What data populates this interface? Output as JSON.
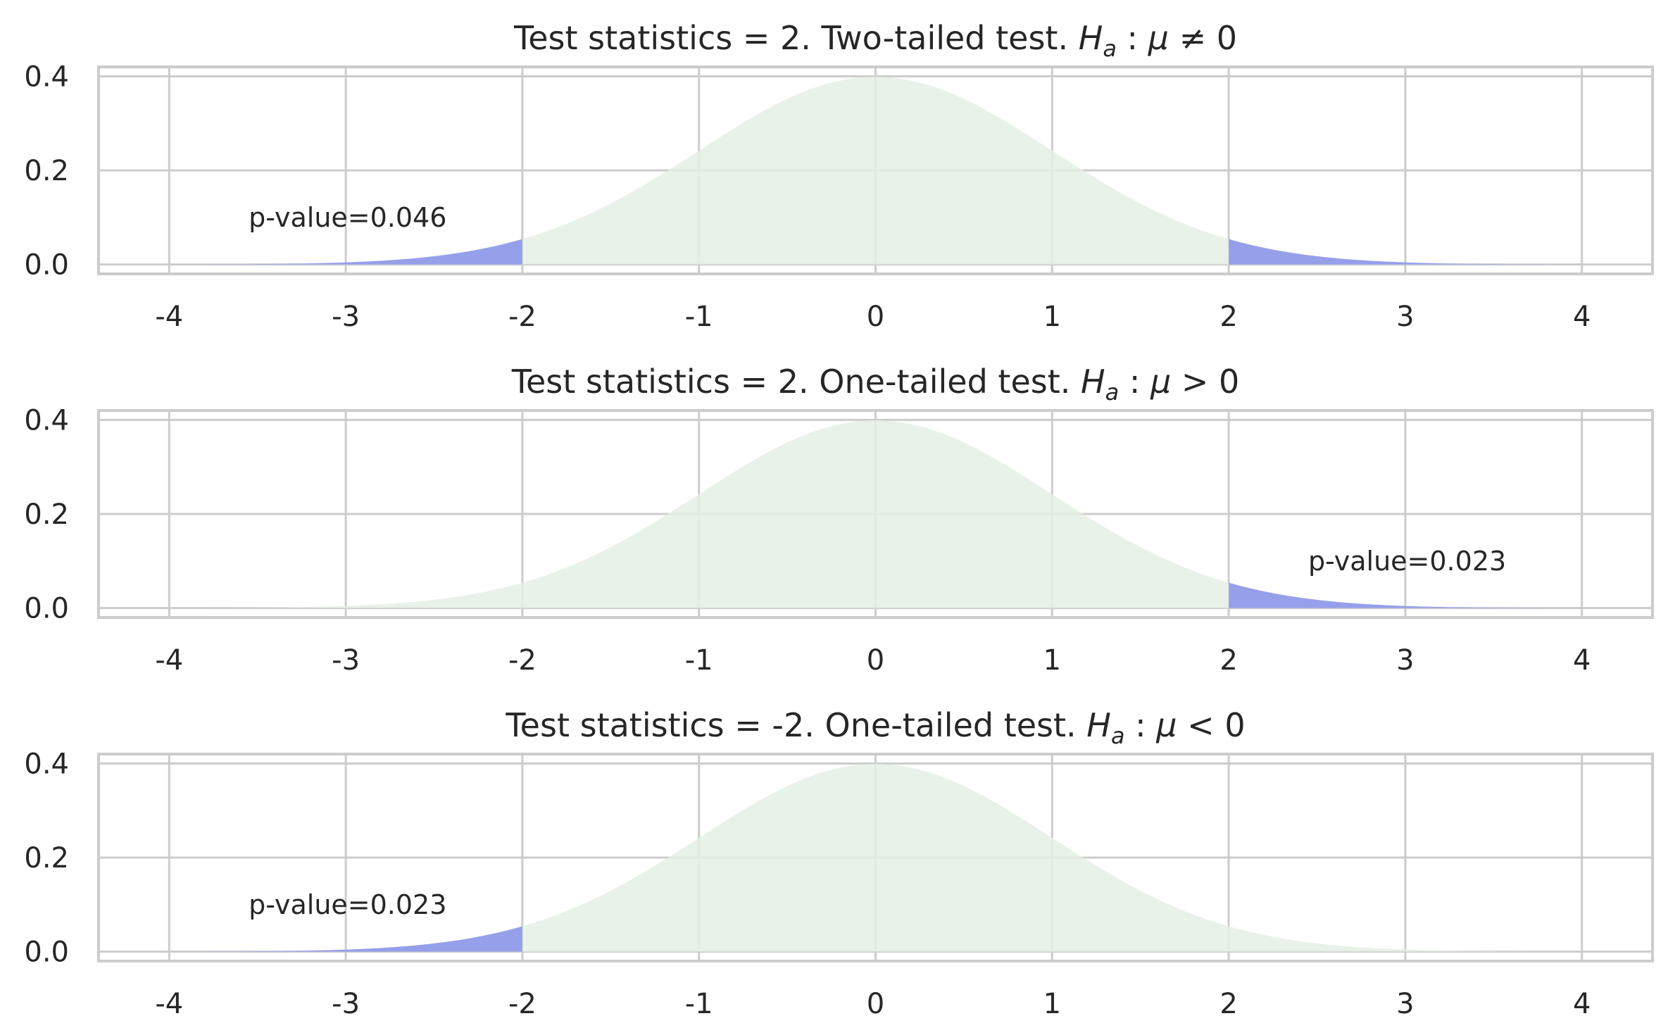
{
  "chart_data": [
    {
      "type": "area",
      "title": "Test statistics = 2. Two-tailed test. ",
      "hyp_sub": "a",
      "hyp_rel": "≠",
      "xlim": [
        -4.4,
        4.4
      ],
      "ylim": [
        -0.02,
        0.42
      ],
      "x_ticks": [
        -4,
        -3,
        -2,
        -1,
        0,
        1,
        2,
        3,
        4
      ],
      "x_tick_labels": [
        "-4",
        "-3",
        "-2",
        "-1",
        "0",
        "1",
        "2",
        "3",
        "4"
      ],
      "y_ticks": [
        0.0,
        0.2,
        0.4
      ],
      "y_tick_labels": [
        "0.0",
        "0.2",
        "0.4"
      ],
      "curve": {
        "distribution": "standard normal",
        "x_range": [
          -4,
          4
        ]
      },
      "shaded_regions": [
        [
          -4,
          -2
        ],
        [
          2,
          4
        ]
      ],
      "annotation": {
        "text": "p-value=0.046",
        "x": -3.55,
        "y": 0.1
      },
      "grid": true
    },
    {
      "type": "area",
      "title": "Test statistics = 2. One-tailed test. ",
      "hyp_sub": "a",
      "hyp_rel": ">",
      "xlim": [
        -4.4,
        4.4
      ],
      "ylim": [
        -0.02,
        0.42
      ],
      "x_ticks": [
        -4,
        -3,
        -2,
        -1,
        0,
        1,
        2,
        3,
        4
      ],
      "x_tick_labels": [
        "-4",
        "-3",
        "-2",
        "-1",
        "0",
        "1",
        "2",
        "3",
        "4"
      ],
      "y_ticks": [
        0.0,
        0.2,
        0.4
      ],
      "y_tick_labels": [
        "0.0",
        "0.2",
        "0.4"
      ],
      "curve": {
        "distribution": "standard normal",
        "x_range": [
          -4,
          4
        ]
      },
      "shaded_regions": [
        [
          2,
          4
        ]
      ],
      "annotation": {
        "text": "p-value=0.023",
        "x": 2.45,
        "y": 0.1
      },
      "grid": true
    },
    {
      "type": "area",
      "title": "Test statistics = -2. One-tailed test. ",
      "hyp_sub": "a",
      "hyp_rel": "<",
      "xlim": [
        -4.4,
        4.4
      ],
      "ylim": [
        -0.02,
        0.42
      ],
      "x_ticks": [
        -4,
        -3,
        -2,
        -1,
        0,
        1,
        2,
        3,
        4
      ],
      "x_tick_labels": [
        "-4",
        "-3",
        "-2",
        "-1",
        "0",
        "1",
        "2",
        "3",
        "4"
      ],
      "y_ticks": [
        0.0,
        0.2,
        0.4
      ],
      "y_tick_labels": [
        "0.0",
        "0.2",
        "0.4"
      ],
      "curve": {
        "distribution": "standard normal",
        "x_range": [
          -4,
          4
        ]
      },
      "shaded_regions": [
        [
          -4,
          -2
        ]
      ],
      "annotation": {
        "text": "p-value=0.023",
        "x": -3.55,
        "y": 0.1
      },
      "grid": true
    }
  ],
  "colors": {
    "curve_fill": "#e5f0e4",
    "tail_fill": "#969fea",
    "grid": "#cccccc",
    "frame": "#cccccc",
    "text": "#262626"
  }
}
